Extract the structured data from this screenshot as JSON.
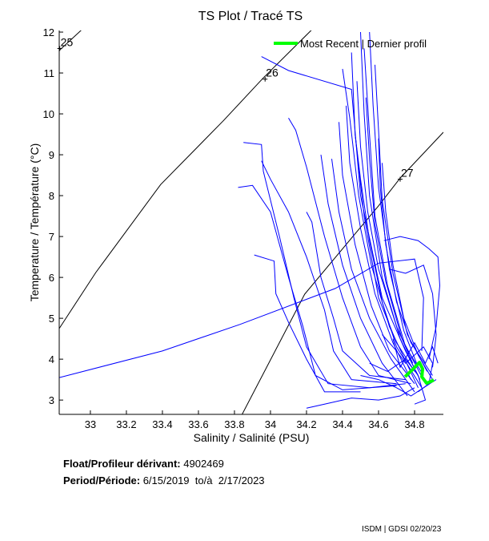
{
  "chart_data": {
    "type": "line",
    "title": "TS Plot / Tracé TS",
    "xlabel": "Salinity / Salinité (PSU)",
    "ylabel": "Temperature / Température (°C)",
    "xlim": [
      32.827,
      34.96
    ],
    "ylim": [
      2.65,
      12.04
    ],
    "xticks": [
      33,
      33.2,
      33.4,
      33.6,
      33.8,
      34,
      34.2,
      34.4,
      34.6,
      34.8
    ],
    "yticks": [
      3,
      4,
      5,
      6,
      7,
      8,
      9,
      10,
      11,
      12
    ],
    "legend": {
      "label": "Most Recent | Dernier profil",
      "placement": "top-right"
    },
    "colors": {
      "profiles": "#0000ff",
      "most_recent": "#00ff00",
      "density": "#000000"
    },
    "density_contours": [
      {
        "label": "25",
        "label_at": [
          32.83,
          11.6
        ],
        "points": [
          [
            32.827,
            11.55
          ],
          [
            32.95,
            12.05
          ]
        ]
      },
      {
        "label": "26",
        "label_at": [
          33.97,
          10.85
        ],
        "points": [
          [
            32.827,
            4.75
          ],
          [
            33.03,
            6.12
          ],
          [
            33.39,
            8.27
          ],
          [
            33.74,
            9.84
          ],
          [
            33.96,
            10.88
          ],
          [
            34.23,
            12.06
          ]
        ]
      },
      {
        "label": "27",
        "label_at": [
          34.72,
          8.4
        ],
        "points": [
          [
            33.84,
            2.63
          ],
          [
            34.19,
            5.59
          ],
          [
            34.45,
            6.96
          ],
          [
            34.6,
            7.75
          ],
          [
            34.72,
            8.43
          ],
          [
            34.96,
            9.55
          ]
        ]
      }
    ],
    "profiles": [
      [
        [
          33.95,
          11.4
        ],
        [
          34.1,
          11.06
        ],
        [
          34.45,
          10.6
        ],
        [
          34.5,
          8
        ],
        [
          34.62,
          5.5
        ],
        [
          34.75,
          4.2
        ],
        [
          34.82,
          3.6
        ]
      ],
      [
        [
          32.827,
          3.55
        ],
        [
          33.4,
          4.2
        ],
        [
          33.83,
          4.85
        ],
        [
          34.36,
          5.73
        ],
        [
          34.6,
          6.35
        ],
        [
          34.8,
          6.45
        ],
        [
          34.85,
          5.5
        ],
        [
          34.84,
          4.2
        ]
      ],
      [
        [
          33.85,
          9.3
        ],
        [
          33.95,
          9.25
        ],
        [
          33.96,
          8.6
        ],
        [
          34.05,
          7.0
        ],
        [
          34.13,
          5.5
        ],
        [
          34.2,
          4.3
        ],
        [
          34.32,
          3.4
        ],
        [
          34.55,
          3.3
        ],
        [
          34.75,
          3.4
        ]
      ],
      [
        [
          33.82,
          8.2
        ],
        [
          33.9,
          8.25
        ],
        [
          34.0,
          7.6
        ],
        [
          34.1,
          6.0
        ],
        [
          34.18,
          4.8
        ],
        [
          34.25,
          3.6
        ],
        [
          34.4,
          3.25
        ],
        [
          34.7,
          3.35
        ]
      ],
      [
        [
          33.91,
          6.55
        ],
        [
          34.02,
          6.4
        ],
        [
          34.03,
          5.6
        ],
        [
          34.1,
          4.9
        ],
        [
          34.2,
          4.0
        ],
        [
          34.3,
          3.2
        ],
        [
          34.5,
          3.2
        ]
      ],
      [
        [
          33.95,
          8.85
        ],
        [
          34.0,
          8.4
        ],
        [
          34.1,
          7.6
        ],
        [
          34.2,
          6.5
        ],
        [
          34.3,
          5.2
        ],
        [
          34.35,
          4.2
        ],
        [
          34.45,
          3.5
        ],
        [
          34.7,
          3.4
        ]
      ],
      [
        [
          34.2,
          7.6
        ],
        [
          34.23,
          7.35
        ],
        [
          34.28,
          6.0
        ],
        [
          34.35,
          5.0
        ],
        [
          34.4,
          4.2
        ],
        [
          34.55,
          3.6
        ],
        [
          34.75,
          3.5
        ]
      ],
      [
        [
          34.1,
          9.9
        ],
        [
          34.14,
          9.6
        ],
        [
          34.2,
          8.7
        ],
        [
          34.3,
          7.0
        ],
        [
          34.4,
          5.5
        ],
        [
          34.5,
          4.3
        ],
        [
          34.6,
          3.6
        ],
        [
          34.78,
          3.4
        ]
      ],
      [
        [
          34.45,
          11.5
        ],
        [
          34.47,
          9.5
        ],
        [
          34.52,
          7.5
        ],
        [
          34.6,
          5.5
        ],
        [
          34.7,
          4.4
        ],
        [
          34.8,
          3.7
        ]
      ],
      [
        [
          34.5,
          12.0
        ],
        [
          34.52,
          10
        ],
        [
          34.55,
          8
        ],
        [
          34.62,
          6
        ],
        [
          34.72,
          4.5
        ],
        [
          34.83,
          3.5
        ]
      ],
      [
        [
          34.52,
          11.6
        ],
        [
          34.55,
          9.5
        ],
        [
          34.58,
          7.5
        ],
        [
          34.65,
          5.8
        ],
        [
          34.75,
          4.3
        ],
        [
          34.85,
          3.6
        ]
      ],
      [
        [
          34.55,
          12.0
        ],
        [
          34.57,
          10.2
        ],
        [
          34.6,
          8.2
        ],
        [
          34.66,
          6.2
        ],
        [
          34.74,
          4.7
        ],
        [
          34.82,
          3.8
        ]
      ],
      [
        [
          34.42,
          10.2
        ],
        [
          34.44,
          8.8
        ],
        [
          34.5,
          7.2
        ],
        [
          34.58,
          5.6
        ],
        [
          34.68,
          4.4
        ],
        [
          34.78,
          3.5
        ]
      ],
      [
        [
          34.38,
          9.8
        ],
        [
          34.4,
          8.5
        ],
        [
          34.47,
          6.8
        ],
        [
          34.56,
          5.3
        ],
        [
          34.66,
          4.2
        ],
        [
          34.8,
          3.4
        ]
      ],
      [
        [
          34.47,
          9.5
        ],
        [
          34.5,
          8.4
        ],
        [
          34.55,
          6.9
        ],
        [
          34.62,
          5.4
        ],
        [
          34.7,
          4.3
        ],
        [
          34.84,
          3.3
        ]
      ],
      [
        [
          34.58,
          11.2
        ],
        [
          34.6,
          9.6
        ],
        [
          34.62,
          7.9
        ],
        [
          34.68,
          6.1
        ],
        [
          34.76,
          4.6
        ],
        [
          34.87,
          3.7
        ]
      ],
      [
        [
          34.6,
          9.4
        ],
        [
          34.61,
          8.2
        ],
        [
          34.64,
          6.8
        ],
        [
          34.7,
          5.4
        ],
        [
          34.78,
          4.4
        ],
        [
          34.9,
          3.6
        ]
      ],
      [
        [
          34.34,
          8.9
        ],
        [
          34.38,
          7.6
        ],
        [
          34.45,
          6.2
        ],
        [
          34.55,
          5
        ],
        [
          34.67,
          4
        ],
        [
          34.8,
          3.2
        ]
      ],
      [
        [
          34.48,
          10.8
        ],
        [
          34.5,
          9.2
        ],
        [
          34.54,
          7.6
        ],
        [
          34.6,
          6.2
        ],
        [
          34.7,
          4.8
        ],
        [
          34.79,
          3.9
        ]
      ],
      [
        [
          34.53,
          10.4
        ],
        [
          34.55,
          8.9
        ],
        [
          34.58,
          7.3
        ],
        [
          34.64,
          5.9
        ],
        [
          34.73,
          4.5
        ],
        [
          34.86,
          3.4
        ]
      ],
      [
        [
          34.4,
          11.1
        ],
        [
          34.44,
          9.9
        ],
        [
          34.49,
          8
        ],
        [
          34.56,
          6.3
        ],
        [
          34.66,
          4.8
        ],
        [
          34.82,
          3.3
        ]
      ],
      [
        [
          34.62,
          8.8
        ],
        [
          34.64,
          7.6
        ],
        [
          34.68,
          6.3
        ],
        [
          34.74,
          5
        ],
        [
          34.82,
          4.1
        ],
        [
          34.9,
          3.5
        ]
      ],
      [
        [
          34.28,
          9.0
        ],
        [
          34.32,
          7.8
        ],
        [
          34.4,
          6.3
        ],
        [
          34.5,
          5.0
        ],
        [
          34.62,
          3.9
        ],
        [
          34.76,
          3.1
        ]
      ],
      [
        [
          34.63,
          6.9
        ],
        [
          34.72,
          7.0
        ],
        [
          34.82,
          6.9
        ],
        [
          34.88,
          6.7
        ],
        [
          34.93,
          6.5
        ],
        [
          34.94,
          5.8
        ],
        [
          34.92,
          4.8
        ],
        [
          34.88,
          4.0
        ]
      ],
      [
        [
          34.66,
          6.2
        ],
        [
          34.75,
          6.1
        ],
        [
          34.85,
          6.3
        ],
        [
          34.9,
          5.6
        ],
        [
          34.92,
          4.6
        ],
        [
          34.9,
          3.8
        ]
      ],
      [
        [
          34.62,
          4.6
        ],
        [
          34.7,
          4.2
        ],
        [
          34.75,
          3.9
        ],
        [
          34.85,
          4.3
        ],
        [
          34.9,
          3.9
        ],
        [
          34.88,
          3.4
        ],
        [
          34.82,
          3.2
        ]
      ],
      [
        [
          34.55,
          3.9
        ],
        [
          34.65,
          3.7
        ],
        [
          34.75,
          4.0
        ],
        [
          34.82,
          3.6
        ],
        [
          34.86,
          3.0
        ],
        [
          34.8,
          2.9
        ]
      ],
      [
        [
          34.5,
          3.6
        ],
        [
          34.6,
          3.5
        ],
        [
          34.7,
          3.3
        ],
        [
          34.78,
          3.1
        ],
        [
          34.85,
          3.3
        ],
        [
          34.92,
          3.5
        ]
      ],
      [
        [
          34.68,
          4.5
        ],
        [
          34.72,
          3.8
        ],
        [
          34.8,
          4.4
        ],
        [
          34.86,
          3.9
        ],
        [
          34.9,
          4.3
        ],
        [
          34.93,
          3.9
        ]
      ],
      [
        [
          34.2,
          2.8
        ],
        [
          34.3,
          2.9
        ],
        [
          34.45,
          3.05
        ],
        [
          34.6,
          3.0
        ],
        [
          34.72,
          3.1
        ],
        [
          34.8,
          3.3
        ]
      ]
    ],
    "most_recent": [
      [
        34.747,
        3.57
      ],
      [
        34.79,
        3.75
      ],
      [
        34.827,
        3.92
      ],
      [
        34.845,
        3.76
      ],
      [
        34.84,
        3.57
      ],
      [
        34.867,
        3.41
      ],
      [
        34.907,
        3.49
      ]
    ]
  },
  "info": {
    "float_label": "Float/Profileur dérivant:",
    "float_id": "4902469",
    "period_label": "Period/Période:",
    "period_start": "6/15/2019",
    "period_sep": "to/à",
    "period_end": "2/17/2023",
    "credit": "ISDM | GDSI 02/20/23"
  }
}
